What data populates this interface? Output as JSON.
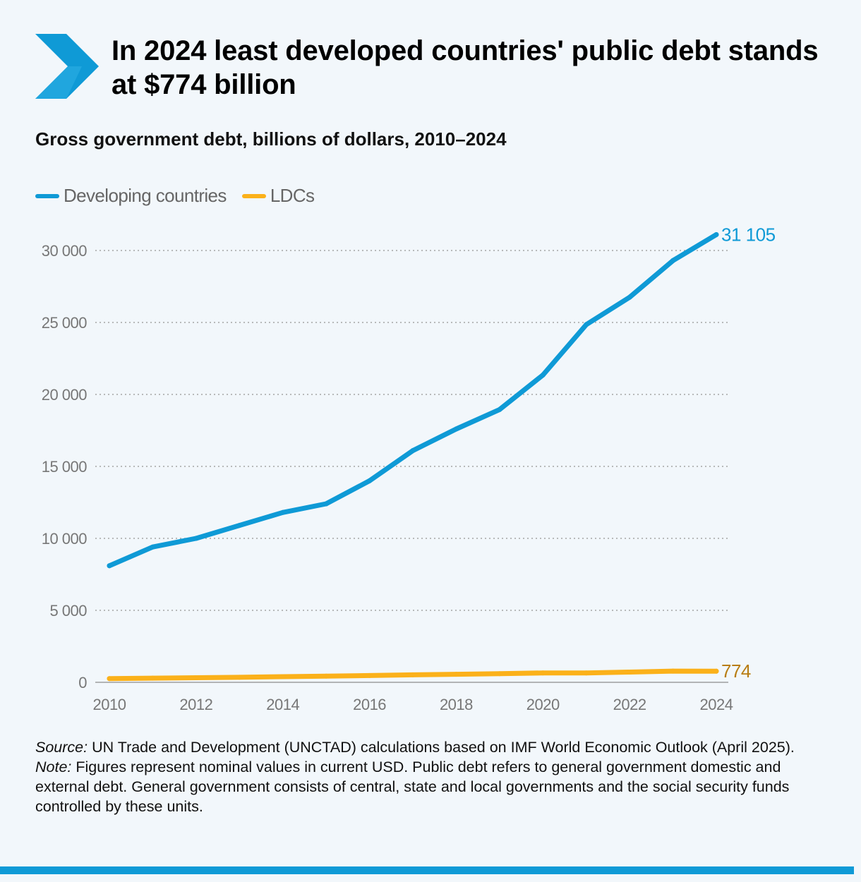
{
  "header": {
    "title": "In 2024 least developed countries' public debt stands at $774 billion",
    "subtitle": "Gross government debt, billions of dollars, 2010–2024"
  },
  "colors": {
    "accent": "#0f9ad6",
    "developing": "#0f9ad6",
    "ldcs": "#fbb11a",
    "ldc_label": "#b87d12",
    "grid": "#a5a5a5",
    "axis_text": "#777777"
  },
  "legend": {
    "developing_label": "Developing countries",
    "ldcs_label": "LDCs"
  },
  "chart_data": {
    "type": "line",
    "title": "Gross government debt, billions of dollars, 2010–2024",
    "xlabel": "",
    "ylabel": "",
    "x": [
      2010,
      2011,
      2012,
      2013,
      2014,
      2015,
      2016,
      2017,
      2018,
      2019,
      2020,
      2021,
      2022,
      2023,
      2024
    ],
    "series": [
      {
        "name": "Developing countries",
        "values": [
          8100,
          9400,
          10000,
          10900,
          11800,
          12400,
          14000,
          16100,
          17600,
          18950,
          21350,
          24850,
          26750,
          29300,
          31105
        ],
        "end_label": "31 105"
      },
      {
        "name": "LDCs",
        "values": [
          260,
          290,
          320,
          350,
          390,
          430,
          470,
          520,
          560,
          600,
          650,
          650,
          710,
          780,
          774
        ],
        "end_label": "774"
      }
    ],
    "xticks": [
      2010,
      2012,
      2014,
      2016,
      2018,
      2020,
      2022,
      2024
    ],
    "xtick_labels": [
      "2010",
      "2012",
      "2014",
      "2016",
      "2018",
      "2020",
      "2022",
      "2024"
    ],
    "yticks": [
      0,
      5000,
      10000,
      15000,
      20000,
      25000,
      30000
    ],
    "ytick_labels": [
      "0",
      "5 000",
      "10 000",
      "15 000",
      "20 000",
      "25 000",
      "30 000"
    ],
    "ylim": [
      0,
      30000
    ],
    "xlim": [
      2010,
      2024
    ],
    "grid": true,
    "legend_position": "top-left"
  },
  "footer": {
    "source_label": "Source:",
    "source_text": "UN Trade and Development (UNCTAD) calculations based on IMF World Economic Outlook (April 2025).",
    "note_label": "Note:",
    "note_text": "Figures represent nominal values in current USD. Public debt refers to general government domestic and external debt. General government consists of central, state and local governments and the social security funds controlled by these units."
  }
}
